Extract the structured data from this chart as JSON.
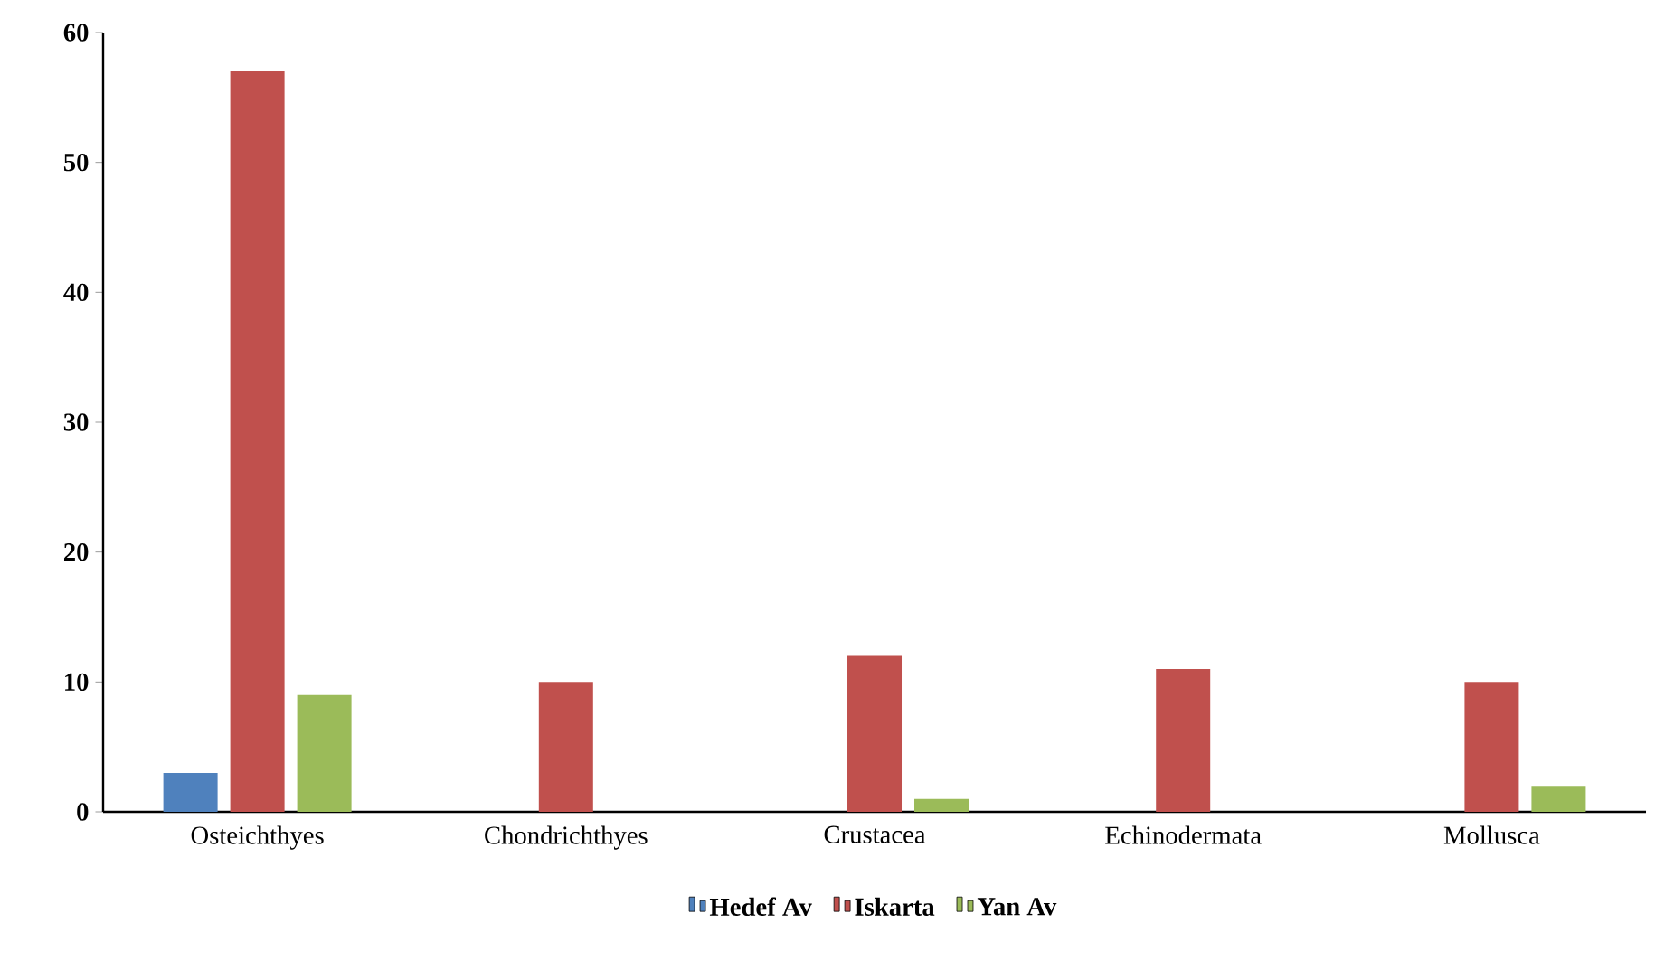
{
  "chart_data": {
    "type": "bar",
    "categories": [
      "Osteichthyes",
      "Chondrichthyes",
      "Crustacea",
      "Echinodermata",
      "Mollusca"
    ],
    "series": [
      {
        "name": "Hedef Av",
        "color": "#4f81bd",
        "values": [
          3,
          0,
          0,
          0,
          0
        ]
      },
      {
        "name": "Iskarta",
        "color": "#c0504d",
        "values": [
          57,
          10,
          12,
          11,
          10
        ]
      },
      {
        "name": "Yan Av",
        "color": "#9bbb59",
        "values": [
          9,
          0,
          1,
          0,
          2
        ]
      }
    ],
    "ylim": [
      0,
      60
    ],
    "yticks": [
      0,
      10,
      20,
      30,
      40,
      50,
      60
    ],
    "legend": "bottom",
    "grid": false
  }
}
